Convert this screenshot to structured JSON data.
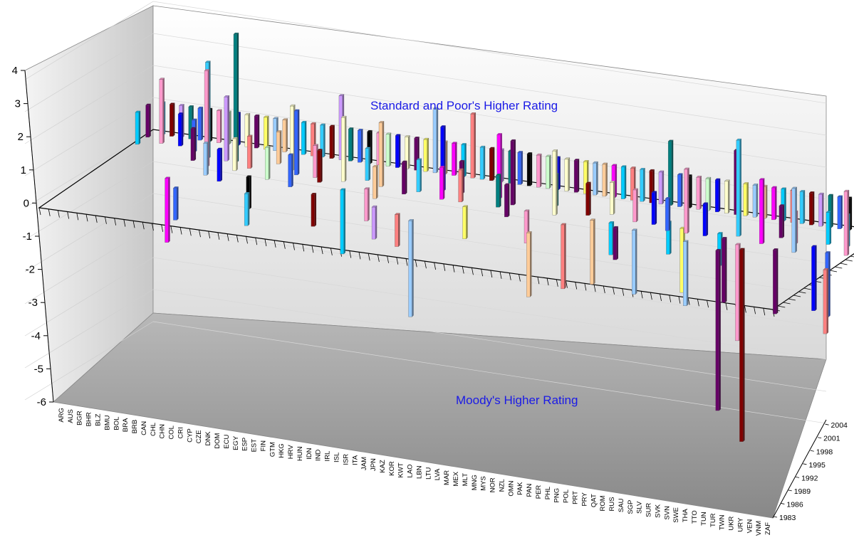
{
  "chart_data": {
    "type": "bar",
    "title": "",
    "annotations": {
      "upper": "Standard and Poor's Higher Rating",
      "lower": "Moody's Higher Rating"
    },
    "z_axis": {
      "range": [
        -6,
        4
      ],
      "ticks": [
        "4",
        "3",
        "2",
        "1",
        "0",
        "-1",
        "-2",
        "-3",
        "-4",
        "-5",
        "-6"
      ]
    },
    "categories": [
      "ARG",
      "AUS",
      "BGR",
      "BHR",
      "BLZ",
      "BMU",
      "BOL",
      "BRA",
      "BRB",
      "CAN",
      "CHL",
      "CHN",
      "COL",
      "CRI",
      "CYP",
      "CZE",
      "DNK",
      "DOM",
      "ECU",
      "EGY",
      "ESP",
      "EST",
      "FIN",
      "GTM",
      "HKG",
      "HRV",
      "HUN",
      "IDN",
      "IND",
      "IRL",
      "ISL",
      "ISR",
      "ITA",
      "JAM",
      "JPN",
      "KAZ",
      "KOR",
      "KWT",
      "LAO",
      "LBN",
      "LTU",
      "LVA",
      "MAR",
      "MEX",
      "MLT",
      "MNG",
      "MYS",
      "NOR",
      "NZL",
      "OMN",
      "PAK",
      "PAN",
      "PER",
      "PHL",
      "PNG",
      "POL",
      "PRT",
      "PRY",
      "QAT",
      "ROM",
      "RUS",
      "SAU",
      "SGP",
      "SLV",
      "SUR",
      "SVK",
      "SVN",
      "SWE",
      "THA",
      "TTO",
      "TUN",
      "TUR",
      "TWN",
      "UKR",
      "URY",
      "VEN",
      "VNM",
      "ZAF"
    ],
    "year_ticks": [
      "2004",
      "2001",
      "1998",
      "1995",
      "1992",
      "1989",
      "1986",
      "1983"
    ],
    "year_range": [
      1983,
      2005
    ],
    "bar_colors": [
      "#ffff66",
      "#33ccff",
      "#ff99cc",
      "#99ccff",
      "#800000",
      "#ccffcc",
      "#ffcc99",
      "#cc99ff",
      "#0000ff",
      "#ff00ff",
      "#008080",
      "#ffffcc",
      "#00ccff",
      "#3366ff",
      "#660066",
      "#ff8080",
      "#000000"
    ],
    "series": [
      {
        "category": "ARG",
        "year": 2003,
        "value": 1.0
      },
      {
        "category": "ARG",
        "year": 2001,
        "value": 1.0
      },
      {
        "category": "AUS",
        "year": 2004,
        "value": 1.0
      },
      {
        "category": "BGR",
        "year": 2004,
        "value": 1.0
      },
      {
        "category": "BGR",
        "year": 2002,
        "value": 2.0
      },
      {
        "category": "BHR",
        "year": 2004,
        "value": 1.0
      },
      {
        "category": "BLZ",
        "year": 2004,
        "value": 1.0
      },
      {
        "category": "BLZ",
        "year": 2002,
        "value": 1.0
      },
      {
        "category": "BMU",
        "year": 2004,
        "value": 1.0
      },
      {
        "category": "BOL",
        "year": 2004,
        "value": 1.0
      },
      {
        "category": "BOL",
        "year": 2001,
        "value": 1.0
      },
      {
        "category": "BRA",
        "year": 2004,
        "value": 1.0
      },
      {
        "category": "BRA",
        "year": 1999,
        "value": 1.0
      },
      {
        "category": "BRA",
        "year": 1994,
        "value": -2.0
      },
      {
        "category": "BRB",
        "year": 2004,
        "value": 1.0
      },
      {
        "category": "BRB",
        "year": 2000,
        "value": 3.0
      },
      {
        "category": "CAN",
        "year": 2004,
        "value": 1.0
      },
      {
        "category": "CAN",
        "year": 1998,
        "value": 3.0
      },
      {
        "category": "CAN",
        "year": 1992,
        "value": -1.0
      },
      {
        "category": "CHL",
        "year": 2004,
        "value": 1.0
      },
      {
        "category": "CHL",
        "year": 2000,
        "value": 2.0
      },
      {
        "category": "CHL",
        "year": 1996,
        "value": 1.0
      },
      {
        "category": "CHN",
        "year": 2004,
        "value": 1.0
      },
      {
        "category": "CHN",
        "year": 2000,
        "value": 4.0
      },
      {
        "category": "COL",
        "year": 2004,
        "value": 1.0
      },
      {
        "category": "COL",
        "year": 1998,
        "value": 1.0
      },
      {
        "category": "COL",
        "year": 1995,
        "value": 1.0
      },
      {
        "category": "CRI",
        "year": 2004,
        "value": 1.0
      },
      {
        "category": "CRI",
        "year": 1999,
        "value": 1.0
      },
      {
        "category": "CYP",
        "year": 2004,
        "value": 1.0
      },
      {
        "category": "CYP",
        "year": 1997,
        "value": -1.0
      },
      {
        "category": "CZE",
        "year": 2004,
        "value": 1.0
      },
      {
        "category": "CZE",
        "year": 2001,
        "value": 1.0
      },
      {
        "category": "DNK",
        "year": 2004,
        "value": 1.0
      },
      {
        "category": "DNK",
        "year": 1997,
        "value": 1.0
      },
      {
        "category": "DNK",
        "year": 1993,
        "value": -1.0
      },
      {
        "category": "DOM",
        "year": 2004,
        "value": 1.0
      },
      {
        "category": "DOM",
        "year": 2000,
        "value": 2.0
      },
      {
        "category": "ECU",
        "year": 2004,
        "value": 1.0
      },
      {
        "category": "ECU",
        "year": 1999,
        "value": 2.0
      },
      {
        "category": "EGY",
        "year": 2004,
        "value": 1.0
      },
      {
        "category": "EGY",
        "year": 1996,
        "value": 1.0
      },
      {
        "category": "ESP",
        "year": 2004,
        "value": 2.0
      },
      {
        "category": "ESP",
        "year": 1999,
        "value": 1.0
      },
      {
        "category": "EST",
        "year": 2004,
        "value": 1.0
      },
      {
        "category": "EST",
        "year": 1998,
        "value": 1.0
      },
      {
        "category": "FIN",
        "year": 2004,
        "value": 1.0
      },
      {
        "category": "FIN",
        "year": 1995,
        "value": -1.0
      },
      {
        "category": "GTM",
        "year": 2004,
        "value": 1.0
      },
      {
        "category": "GTM",
        "year": 1999,
        "value": 2.0
      },
      {
        "category": "HKG",
        "year": 2004,
        "value": 1.0
      },
      {
        "category": "HKG",
        "year": 1997,
        "value": -2.0
      },
      {
        "category": "HRV",
        "year": 2004,
        "value": 1.0
      },
      {
        "category": "HRV",
        "year": 2000,
        "value": 1.0
      },
      {
        "category": "HUN",
        "year": 2004,
        "value": 1.0
      },
      {
        "category": "HUN",
        "year": 1998,
        "value": -1.0
      },
      {
        "category": "IDN",
        "year": 2004,
        "value": 1.0
      },
      {
        "category": "IDN",
        "year": 1999,
        "value": 2.0
      },
      {
        "category": "IND",
        "year": 2004,
        "value": 1.0
      },
      {
        "category": "IND",
        "year": 1996,
        "value": 1.0
      },
      {
        "category": "IRL",
        "year": 2004,
        "value": 1.0
      },
      {
        "category": "IRL",
        "year": 1994,
        "value": -1.0
      },
      {
        "category": "ISL",
        "year": 2004,
        "value": 2.0
      },
      {
        "category": "ISL",
        "year": 1998,
        "value": 1.0
      },
      {
        "category": "ISR",
        "year": 2004,
        "value": 1.0
      },
      {
        "category": "ISR",
        "year": 1999,
        "value": 1.0
      },
      {
        "category": "ITA",
        "year": 2004,
        "value": 1.0
      },
      {
        "category": "ITA",
        "year": 1993,
        "value": -1.0
      },
      {
        "category": "JAM",
        "year": 2004,
        "value": 1.0
      },
      {
        "category": "JAM",
        "year": 2000,
        "value": 2.0
      },
      {
        "category": "JPN",
        "year": 2004,
        "value": 2.0
      },
      {
        "category": "JPN",
        "year": 1998,
        "value": 1.0
      },
      {
        "category": "JPN",
        "year": 1992,
        "value": -3.0
      },
      {
        "category": "KAZ",
        "year": 2004,
        "value": 1.0
      },
      {
        "category": "KAZ",
        "year": 2000,
        "value": 1.0
      },
      {
        "category": "KOR",
        "year": 2004,
        "value": 1.0
      },
      {
        "category": "KOR",
        "year": 1998,
        "value": 1.0
      },
      {
        "category": "KWT",
        "year": 2004,
        "value": 1.0
      },
      {
        "category": "KWT",
        "year": 1997,
        "value": -1.0
      },
      {
        "category": "LAO",
        "year": 2004,
        "value": 1.0
      },
      {
        "category": "LBN",
        "year": 2004,
        "value": 1.0
      },
      {
        "category": "LBN",
        "year": 2000,
        "value": 2.0
      },
      {
        "category": "LTU",
        "year": 2004,
        "value": 1.0
      },
      {
        "category": "LTU",
        "year": 1998,
        "value": 1.0
      },
      {
        "category": "LVA",
        "year": 2004,
        "value": 1.0
      },
      {
        "category": "LVA",
        "year": 1999,
        "value": 2.0
      },
      {
        "category": "MAR",
        "year": 2004,
        "value": 1.0
      },
      {
        "category": "MAR",
        "year": 1996,
        "value": 1.0
      },
      {
        "category": "MEX",
        "year": 2004,
        "value": 1.0
      },
      {
        "category": "MEX",
        "year": 1998,
        "value": -1.0
      },
      {
        "category": "MLT",
        "year": 2004,
        "value": 1.0
      },
      {
        "category": "MNG",
        "year": 2004,
        "value": 1.0
      },
      {
        "category": "MNG",
        "year": 2000,
        "value": 1.0
      },
      {
        "category": "MYS",
        "year": 2004,
        "value": 1.0
      },
      {
        "category": "MYS",
        "year": 1998,
        "value": 2.0
      },
      {
        "category": "MYS",
        "year": 1993,
        "value": -2.0
      },
      {
        "category": "NOR",
        "year": 2004,
        "value": 1.0
      },
      {
        "category": "NZL",
        "year": 2004,
        "value": 1.0
      },
      {
        "category": "NZL",
        "year": 1996,
        "value": -2.0
      },
      {
        "category": "OMN",
        "year": 2004,
        "value": 1.0
      },
      {
        "category": "OMN",
        "year": 1999,
        "value": 1.0
      },
      {
        "category": "PAK",
        "year": 2004,
        "value": 1.0
      },
      {
        "category": "PAK",
        "year": 1998,
        "value": -2.0
      },
      {
        "category": "PAN",
        "year": 2004,
        "value": 1.0
      },
      {
        "category": "PAN",
        "year": 2000,
        "value": 1.0
      },
      {
        "category": "PER",
        "year": 2004,
        "value": 1.0
      },
      {
        "category": "PER",
        "year": 1998,
        "value": -1.0
      },
      {
        "category": "PHL",
        "year": 2004,
        "value": 1.0
      },
      {
        "category": "PHL",
        "year": 1997,
        "value": -1.0
      },
      {
        "category": "PNG",
        "year": 2004,
        "value": 1.0
      },
      {
        "category": "PNG",
        "year": 1999,
        "value": 1.0
      },
      {
        "category": "POL",
        "year": 2004,
        "value": 2.0
      },
      {
        "category": "POL",
        "year": 1997,
        "value": -2.0
      },
      {
        "category": "PRT",
        "year": 2004,
        "value": 1.0
      },
      {
        "category": "PRT",
        "year": 1999,
        "value": 1.0
      },
      {
        "category": "PRY",
        "year": 2004,
        "value": 1.0
      },
      {
        "category": "PRY",
        "year": 2000,
        "value": -1.0
      },
      {
        "category": "QAT",
        "year": 2004,
        "value": 1.0
      },
      {
        "category": "QAT",
        "year": 1998,
        "value": 1.0
      },
      {
        "category": "ROM",
        "year": 2004,
        "value": 1.0
      },
      {
        "category": "ROM",
        "year": 1999,
        "value": -2.0
      },
      {
        "category": "RUS",
        "year": 2004,
        "value": 1.0
      },
      {
        "category": "RUS",
        "year": 1998,
        "value": 2.0
      },
      {
        "category": "SAU",
        "year": 2004,
        "value": 1.0
      },
      {
        "category": "SAU",
        "year": 1996,
        "value": -2.0
      },
      {
        "category": "SGP",
        "year": 2004,
        "value": 2.0
      },
      {
        "category": "SGP",
        "year": 1998,
        "value": 1.0
      },
      {
        "category": "SLV",
        "year": 2004,
        "value": 1.0
      },
      {
        "category": "SLV",
        "year": 1999,
        "value": -1.0
      },
      {
        "category": "SUR",
        "year": 2004,
        "value": 1.0
      },
      {
        "category": "SUR",
        "year": 1998,
        "value": -2.0
      },
      {
        "category": "SVK",
        "year": 2004,
        "value": 1.0
      },
      {
        "category": "SVK",
        "year": 1999,
        "value": 3.0
      },
      {
        "category": "SVK",
        "year": 1995,
        "value": -5.0
      },
      {
        "category": "SVN",
        "year": 2004,
        "value": 1.0
      },
      {
        "category": "SVN",
        "year": 1997,
        "value": -3.0
      },
      {
        "category": "SWE",
        "year": 2004,
        "value": 1.0
      },
      {
        "category": "SWE",
        "year": 1996,
        "value": -6.0
      },
      {
        "category": "THA",
        "year": 2004,
        "value": 1.0
      },
      {
        "category": "THA",
        "year": 1998,
        "value": 2.0
      },
      {
        "category": "TTO",
        "year": 2004,
        "value": 1.0
      },
      {
        "category": "TTO",
        "year": 2000,
        "value": 1.0
      },
      {
        "category": "TUN",
        "year": 2004,
        "value": 1.0
      },
      {
        "category": "TUN",
        "year": 1997,
        "value": -2.0
      },
      {
        "category": "TUR",
        "year": 2004,
        "value": 1.0
      },
      {
        "category": "TUR",
        "year": 1999,
        "value": 1.0
      },
      {
        "category": "TWN",
        "year": 2004,
        "value": 1.0
      },
      {
        "category": "TWN",
        "year": 1997,
        "value": 2.0
      },
      {
        "category": "UKR",
        "year": 2004,
        "value": 1.0
      },
      {
        "category": "UKR",
        "year": 1999,
        "value": -2.0
      },
      {
        "category": "URY",
        "year": 2004,
        "value": 1.0
      },
      {
        "category": "URY",
        "year": 2000,
        "value": 1.0
      },
      {
        "category": "VEN",
        "year": 2004,
        "value": 1.0
      },
      {
        "category": "VEN",
        "year": 1998,
        "value": -2.0
      },
      {
        "category": "VNM",
        "year": 2004,
        "value": 1.0
      },
      {
        "category": "VNM",
        "year": 2000,
        "value": 1.0
      },
      {
        "category": "ZAF",
        "year": 2004,
        "value": 1.0
      },
      {
        "category": "ZAF",
        "year": 1998,
        "value": 2.0
      },
      {
        "category": "ZAF",
        "year": 1994,
        "value": -2.0
      }
    ]
  }
}
